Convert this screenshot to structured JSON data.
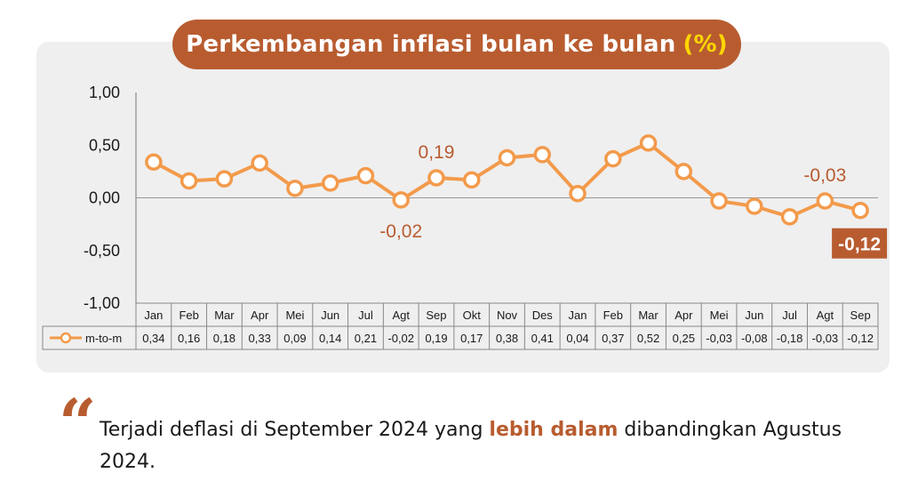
{
  "title": {
    "main": "Perkembangan inflasi bulan ke bulan",
    "unit": "(%)"
  },
  "colors": {
    "accent": "#b85c30",
    "line": "#f39a4b",
    "unit_highlight": "#ffd700",
    "panel": "#efefef"
  },
  "chart_data": {
    "type": "line",
    "categories": [
      "Jan",
      "Feb",
      "Mar",
      "Apr",
      "Mei",
      "Jun",
      "Jul",
      "Agt",
      "Sep",
      "Okt",
      "Nov",
      "Des",
      "Jan",
      "Feb",
      "Mar",
      "Apr",
      "Mei",
      "Jun",
      "Jul",
      "Agt",
      "Sep"
    ],
    "series": [
      {
        "name": "m-to-m",
        "values": [
          0.34,
          0.16,
          0.18,
          0.33,
          0.09,
          0.14,
          0.21,
          -0.02,
          0.19,
          0.17,
          0.38,
          0.41,
          0.04,
          0.37,
          0.52,
          0.25,
          -0.03,
          -0.08,
          -0.18,
          -0.03,
          -0.12
        ],
        "value_labels": [
          "0,34",
          "0,16",
          "0,18",
          "0,33",
          "0,09",
          "0,14",
          "0,21",
          "-0,02",
          "0,19",
          "0,17",
          "0,38",
          "0,41",
          "0,04",
          "0,37",
          "0,52",
          "0,25",
          "-0,03",
          "-0,08",
          "-0,18",
          "-0,03",
          "-0,12"
        ]
      }
    ],
    "ylim": [
      -1.0,
      1.0
    ],
    "yticks": [
      1.0,
      0.5,
      0.0,
      -0.5,
      -1.0
    ],
    "ytick_labels": [
      "1,00",
      "0,50",
      "0,00",
      "-0,50",
      "-1,00"
    ],
    "annotations": [
      {
        "index": 7,
        "text": "-0,02",
        "position": "below"
      },
      {
        "index": 8,
        "text": "0,19",
        "position": "above"
      },
      {
        "index": 19,
        "text": "-0,03",
        "position": "above"
      },
      {
        "index": 20,
        "text": "-0,12",
        "position": "below",
        "highlight": true
      }
    ],
    "data_table": true,
    "grid": false
  },
  "caption": {
    "before": "Terjadi deflasi di September 2024 yang ",
    "highlight": "lebih dalam",
    "after": " dibandingkan Agustus 2024."
  }
}
